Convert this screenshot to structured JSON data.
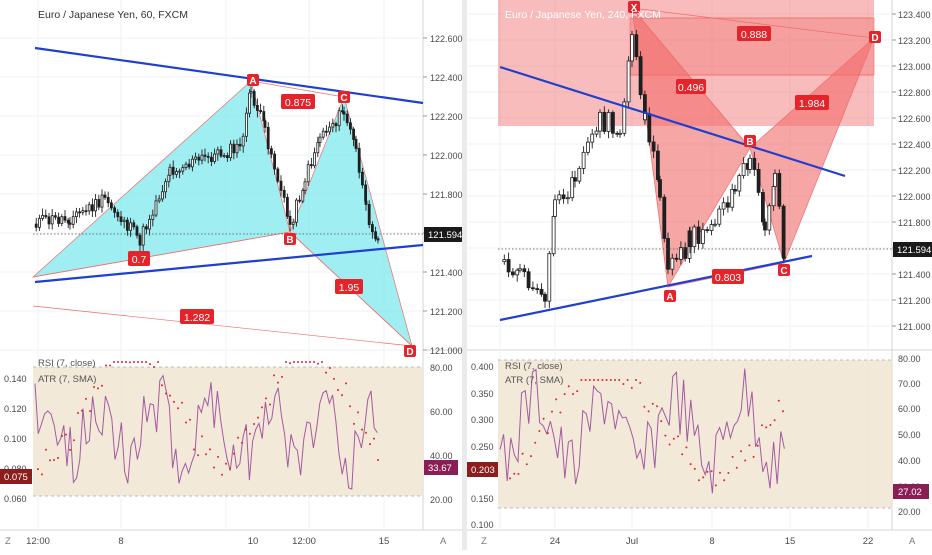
{
  "colors": {
    "background": "#ffffff",
    "separator": "#d4d4d4",
    "grid": "#eef0f3",
    "axis_text": "#4a4a4a",
    "candle": "#1f1f1f",
    "pattern_cyan": "#7fe8ee",
    "pattern_red": "#f26b6b",
    "pattern_label_bg": "#e3242b",
    "trendline": "#1f3fcf",
    "rsi_line": "#a45aa0",
    "atr_dots": "#e0252b",
    "rsi_band": "#efe4cf",
    "last_price_tag": "#1a1a1a",
    "rsi_tag": "#8b1d55",
    "atr_tag": "#8b1d1d"
  },
  "panels": [
    {
      "title": "Euro / Japanese Yen, 60, FXCM",
      "last_price": "121.594",
      "price_ticks": [
        "122.600",
        "122.400",
        "122.200",
        "122.000",
        "121.800",
        "121.600",
        "121.400",
        "121.200",
        "121.000"
      ],
      "time_labels": [
        "12:00",
        "8",
        "10",
        "12:00",
        "15"
      ],
      "pattern_points": [
        "A",
        "B",
        "C",
        "D"
      ],
      "ratio_labels": [
        "0.875",
        "0.7",
        "1.95",
        "1.282"
      ],
      "indicator": {
        "rsi_title": "RSI (7, close)",
        "atr_title": "ATR (7, SMA)",
        "rsi_ticks": [
          "80.00",
          "60.00",
          "40.00",
          "20.00"
        ],
        "atr_ticks": [
          "0.140",
          "0.120",
          "0.100",
          "0.080",
          "0.060"
        ],
        "rsi_value": "33.67",
        "atr_value": "0.075"
      },
      "corner_left": "Z",
      "corner_right": "A"
    },
    {
      "title": "Euro / Japanese Yen, 240, FXCM",
      "last_price": "121.594",
      "price_ticks": [
        "123.400",
        "123.200",
        "123.000",
        "122.800",
        "122.600",
        "122.400",
        "122.200",
        "122.000",
        "121.800",
        "121.600",
        "121.400",
        "121.200",
        "121.000"
      ],
      "time_labels": [
        "24",
        "Jul",
        "8",
        "15",
        "22"
      ],
      "pattern_points": [
        "X",
        "A",
        "B",
        "C",
        "D"
      ],
      "ratio_labels": [
        "0.888",
        "0.496",
        "1.984",
        "0.803"
      ],
      "indicator": {
        "rsi_title": "RSI (7, close)",
        "atr_title": "ATR (7, SMA)",
        "rsi_ticks": [
          "80.00",
          "70.00",
          "60.00",
          "50.00",
          "40.00",
          "30.00",
          "20.00"
        ],
        "atr_ticks": [
          "0.400",
          "0.350",
          "0.300",
          "0.250",
          "0.200",
          "0.150",
          "0.100"
        ],
        "rsi_value": "27.02",
        "atr_value": "0.203"
      },
      "corner_left": "Z",
      "corner_right": "A"
    }
  ]
}
